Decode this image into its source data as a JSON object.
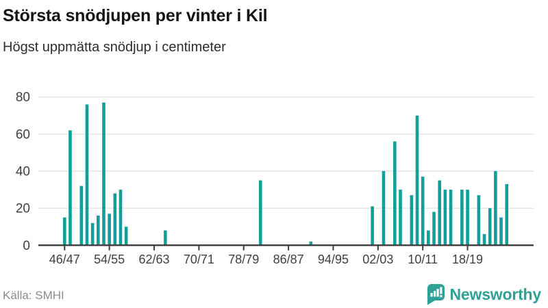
{
  "header": {
    "title": "Största snödjupen per vinter i Kil",
    "subtitle": "Högst uppmätta snödjup i centimeter"
  },
  "footer": {
    "source": "Källa: SMHI",
    "brand_name": "Newsworthy",
    "brand_icon": "bar-chart-pin-icon"
  },
  "colors": {
    "bar": "#10a099",
    "brand": "#2ea095",
    "grid": "#e3e3e3",
    "axis": "#3c3c3c",
    "tick_label": "#3f3f3f",
    "title": "#151515",
    "muted": "#8c8c8c"
  },
  "chart_data": {
    "type": "bar",
    "title": "Största snödjupen per vinter i Kil",
    "subtitle": "Högst uppmätta snödjup i centimeter",
    "xlabel": "",
    "ylabel": "Högst uppmätta snödjup i centimeter",
    "ylim": [
      0,
      80
    ],
    "y_ticks": [
      0,
      20,
      40,
      60,
      80
    ],
    "grid": "horizontal",
    "legend": "none",
    "x_first_winter": "46/47",
    "x_last_winter": "25/26",
    "x_tick_labels": [
      "46/47",
      "54/55",
      "62/63",
      "70/71",
      "78/79",
      "86/87",
      "94/95",
      "02/03",
      "10/11",
      "18/19"
    ],
    "series": [
      {
        "name": "Snödjup (cm)",
        "points": [
          {
            "winter": "46/47",
            "value": 15
          },
          {
            "winter": "47/48",
            "value": 62
          },
          {
            "winter": "49/50",
            "value": 32
          },
          {
            "winter": "50/51",
            "value": 76
          },
          {
            "winter": "51/52",
            "value": 12
          },
          {
            "winter": "52/53",
            "value": 16
          },
          {
            "winter": "53/54",
            "value": 77
          },
          {
            "winter": "54/55",
            "value": 17
          },
          {
            "winter": "55/56",
            "value": 28
          },
          {
            "winter": "56/57",
            "value": 30
          },
          {
            "winter": "57/58",
            "value": 10
          },
          {
            "winter": "64/65",
            "value": 8
          },
          {
            "winter": "81/82",
            "value": 35
          },
          {
            "winter": "90/91",
            "value": 2
          },
          {
            "winter": "01/02",
            "value": 21
          },
          {
            "winter": "03/04",
            "value": 40
          },
          {
            "winter": "05/06",
            "value": 56
          },
          {
            "winter": "06/07",
            "value": 30
          },
          {
            "winter": "08/09",
            "value": 27
          },
          {
            "winter": "09/10",
            "value": 70
          },
          {
            "winter": "10/11",
            "value": 37
          },
          {
            "winter": "11/12",
            "value": 8
          },
          {
            "winter": "12/13",
            "value": 18
          },
          {
            "winter": "13/14",
            "value": 35
          },
          {
            "winter": "14/15",
            "value": 30
          },
          {
            "winter": "15/16",
            "value": 30
          },
          {
            "winter": "17/18",
            "value": 30
          },
          {
            "winter": "18/19",
            "value": 30
          },
          {
            "winter": "20/21",
            "value": 27
          },
          {
            "winter": "21/22",
            "value": 6
          },
          {
            "winter": "22/23",
            "value": 20
          },
          {
            "winter": "23/24",
            "value": 40
          },
          {
            "winter": "24/25",
            "value": 15
          },
          {
            "winter": "25/26",
            "value": 33
          }
        ]
      }
    ]
  }
}
